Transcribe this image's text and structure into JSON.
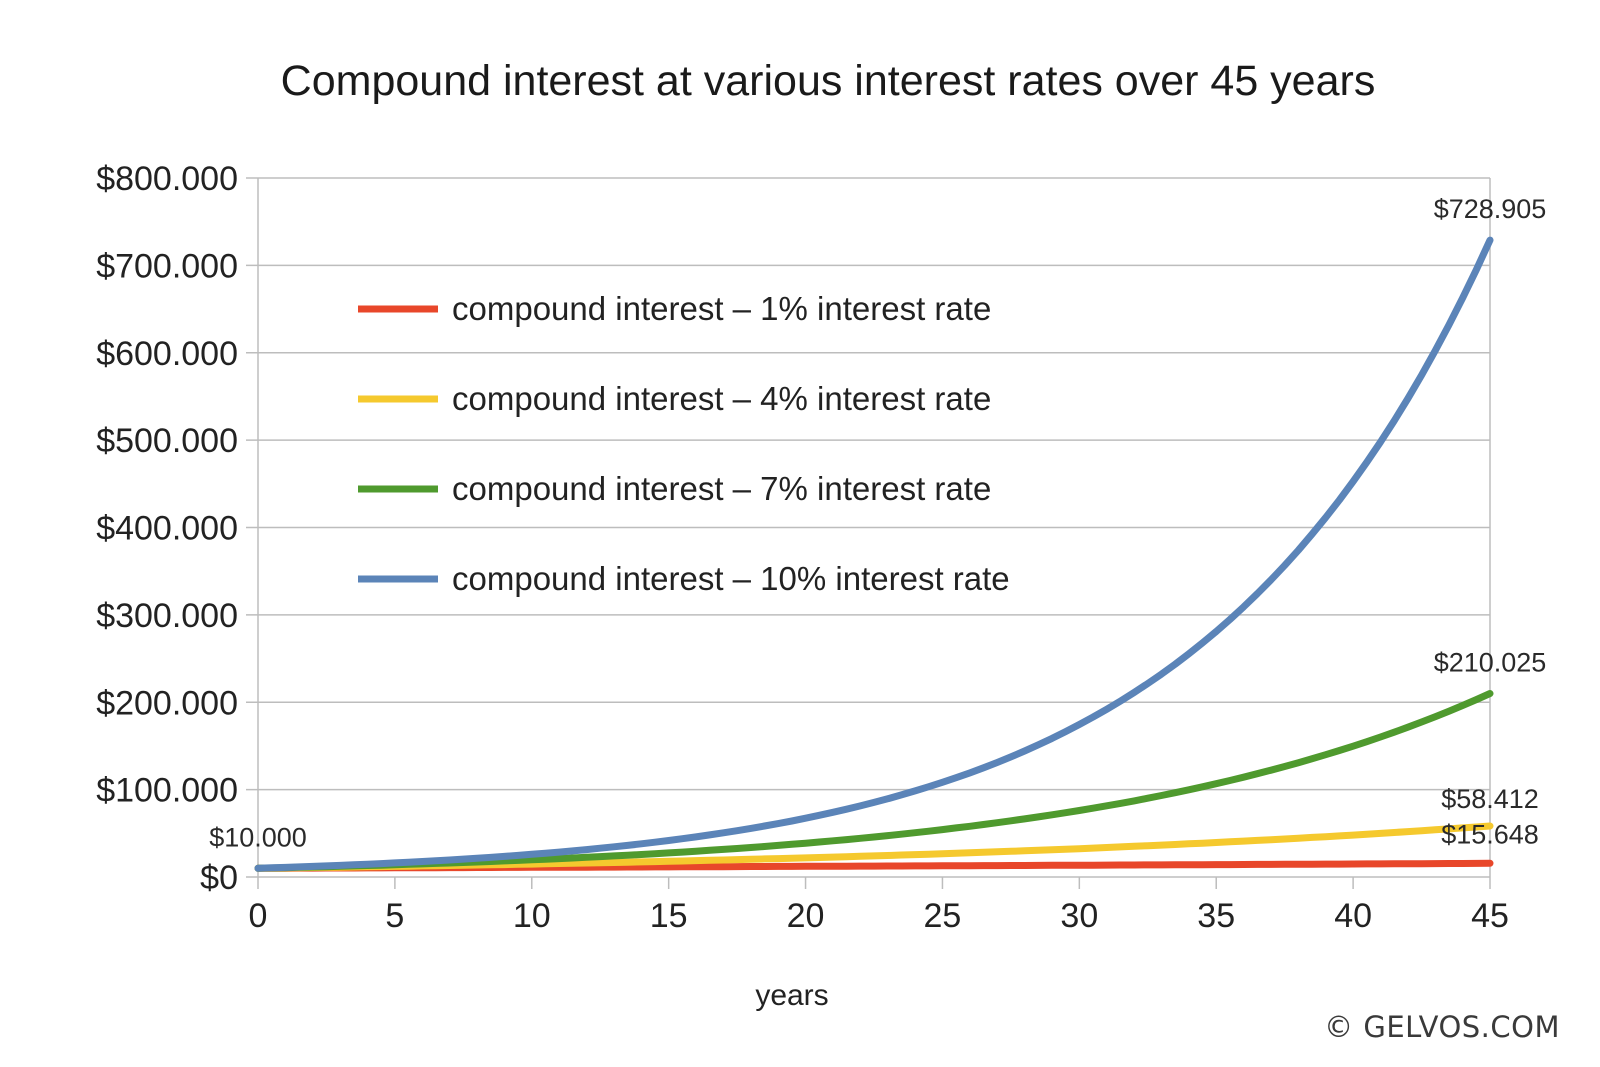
{
  "chart_data": {
    "type": "line",
    "title": "Compound interest at various interest rates over 45 years",
    "xlabel": "years",
    "ylabel": "",
    "xlim": [
      0,
      45
    ],
    "ylim": [
      0,
      800000
    ],
    "x_ticks": [
      0,
      5,
      10,
      15,
      20,
      25,
      30,
      35,
      40,
      45
    ],
    "x_tick_labels": [
      "0",
      "5",
      "10",
      "15",
      "20",
      "25",
      "30",
      "35",
      "40",
      "45"
    ],
    "y_ticks": [
      0,
      100000,
      200000,
      300000,
      400000,
      500000,
      600000,
      700000,
      800000
    ],
    "y_tick_labels": [
      "$0",
      "$100.000",
      "$200.000",
      "$300.000",
      "$400.000",
      "$500.000",
      "$600.000",
      "$700.000",
      "$800.000"
    ],
    "grid": true,
    "legend_position": "top-left",
    "principal": 10000,
    "series": [
      {
        "name": "compound interest – 1% interest rate",
        "rate": 0.01,
        "color": "#e8472a"
      },
      {
        "name": "compound interest – 4% interest rate",
        "rate": 0.04,
        "color": "#f5c92e"
      },
      {
        "name": "compound interest – 7% interest rate",
        "rate": 0.07,
        "color": "#4f9a2e"
      },
      {
        "name": "compound interest – 10% interest rate",
        "rate": 0.1,
        "color": "#5b84b8"
      }
    ],
    "annotations": [
      {
        "text": "$10.000",
        "x": 0,
        "y": 10000
      },
      {
        "text": "$728.905",
        "x": 45,
        "y": 728905
      },
      {
        "text": "$210.025",
        "x": 45,
        "y": 210025
      },
      {
        "text": "$58.412",
        "x": 45,
        "y": 58412
      },
      {
        "text": "$15.648",
        "x": 45,
        "y": 15648
      }
    ]
  },
  "watermark": "© GELVOS.COM"
}
